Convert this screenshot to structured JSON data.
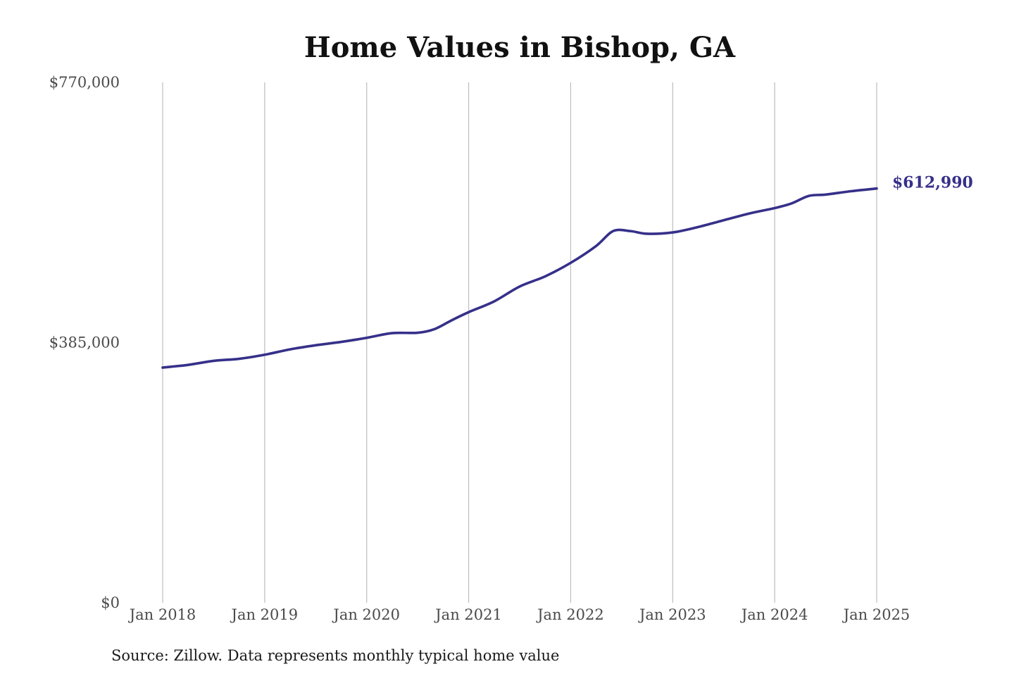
{
  "chart_data": {
    "type": "line",
    "title": "Home Values in Bishop, GA",
    "xlabel": "",
    "ylabel": "",
    "source": "Source: Zillow. Data represents monthly typical home value",
    "ylim": [
      0,
      770000
    ],
    "yticks": [
      {
        "value": 0,
        "label": "$0"
      },
      {
        "value": 385000,
        "label": "$385,000"
      },
      {
        "value": 770000,
        "label": "$770,000"
      }
    ],
    "xticks": [
      {
        "value": "2018-01",
        "label": "Jan 2018"
      },
      {
        "value": "2019-01",
        "label": "Jan 2019"
      },
      {
        "value": "2020-01",
        "label": "Jan 2020"
      },
      {
        "value": "2021-01",
        "label": "Jan 2021"
      },
      {
        "value": "2022-01",
        "label": "Jan 2022"
      },
      {
        "value": "2023-01",
        "label": "Jan 2023"
      },
      {
        "value": "2024-01",
        "label": "Jan 2024"
      },
      {
        "value": "2025-01",
        "label": "Jan 2025"
      }
    ],
    "grid": "vertical",
    "color": "#363089",
    "end_label": "$612,990",
    "series": [
      {
        "points": [
          {
            "x": "2018-01",
            "y": 348000
          },
          {
            "x": "2018-04",
            "y": 352000
          },
          {
            "x": "2018-07",
            "y": 358000
          },
          {
            "x": "2018-10",
            "y": 361000
          },
          {
            "x": "2019-01",
            "y": 367000
          },
          {
            "x": "2019-04",
            "y": 375000
          },
          {
            "x": "2019-07",
            "y": 381000
          },
          {
            "x": "2019-10",
            "y": 386000
          },
          {
            "x": "2020-01",
            "y": 392000
          },
          {
            "x": "2020-04",
            "y": 399000
          },
          {
            "x": "2020-07",
            "y": 399500
          },
          {
            "x": "2020-09",
            "y": 405000
          },
          {
            "x": "2020-11",
            "y": 418000
          },
          {
            "x": "2021-01",
            "y": 430000
          },
          {
            "x": "2021-04",
            "y": 446000
          },
          {
            "x": "2021-07",
            "y": 468000
          },
          {
            "x": "2021-10",
            "y": 483000
          },
          {
            "x": "2022-01",
            "y": 503000
          },
          {
            "x": "2022-04",
            "y": 528000
          },
          {
            "x": "2022-06",
            "y": 550000
          },
          {
            "x": "2022-08",
            "y": 550000
          },
          {
            "x": "2022-10",
            "y": 546000
          },
          {
            "x": "2023-01",
            "y": 548000
          },
          {
            "x": "2023-04",
            "y": 556000
          },
          {
            "x": "2023-07",
            "y": 566000
          },
          {
            "x": "2023-10",
            "y": 576000
          },
          {
            "x": "2024-01",
            "y": 584000
          },
          {
            "x": "2024-03",
            "y": 591000
          },
          {
            "x": "2024-05",
            "y": 602000
          },
          {
            "x": "2024-07",
            "y": 604000
          },
          {
            "x": "2024-10",
            "y": 609000
          },
          {
            "x": "2025-01",
            "y": 612990
          }
        ]
      }
    ]
  }
}
